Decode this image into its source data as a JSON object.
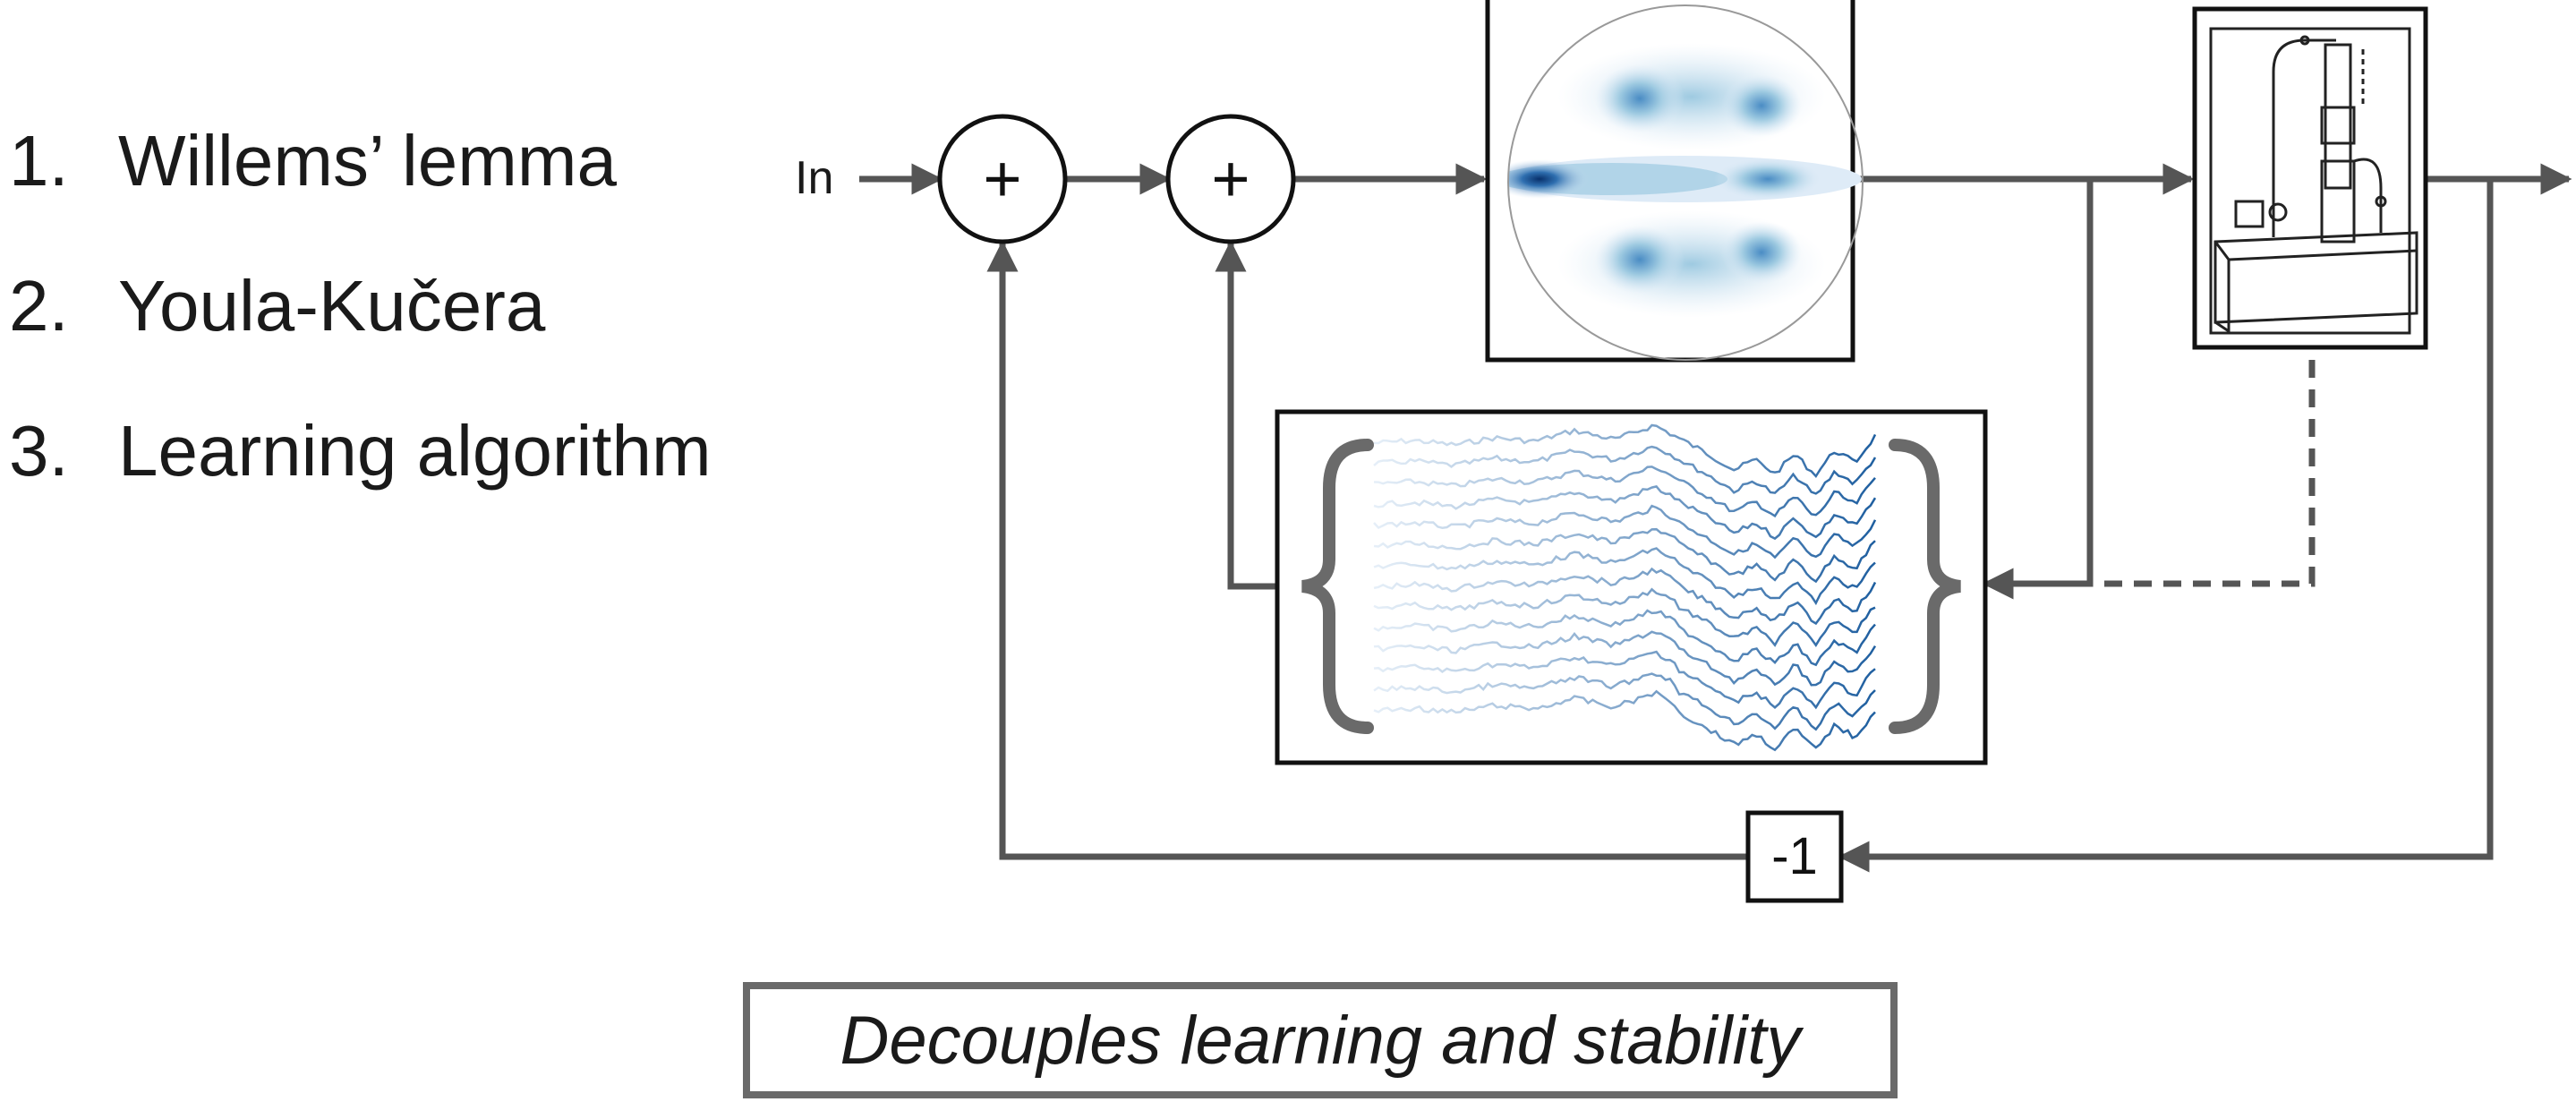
{
  "list": [
    {
      "number": "1.",
      "text": "Willems’ lemma"
    },
    {
      "number": "2.",
      "text": "Youla-Kučera"
    },
    {
      "number": "3.",
      "text": "Learning algorithm"
    }
  ],
  "diagram": {
    "input_label": "In",
    "sum_symbol": "+",
    "gain_label": "-1",
    "line_color": "#555555",
    "accent_color": "#1f5fa0"
  },
  "caption": "Decouples learning and stability"
}
